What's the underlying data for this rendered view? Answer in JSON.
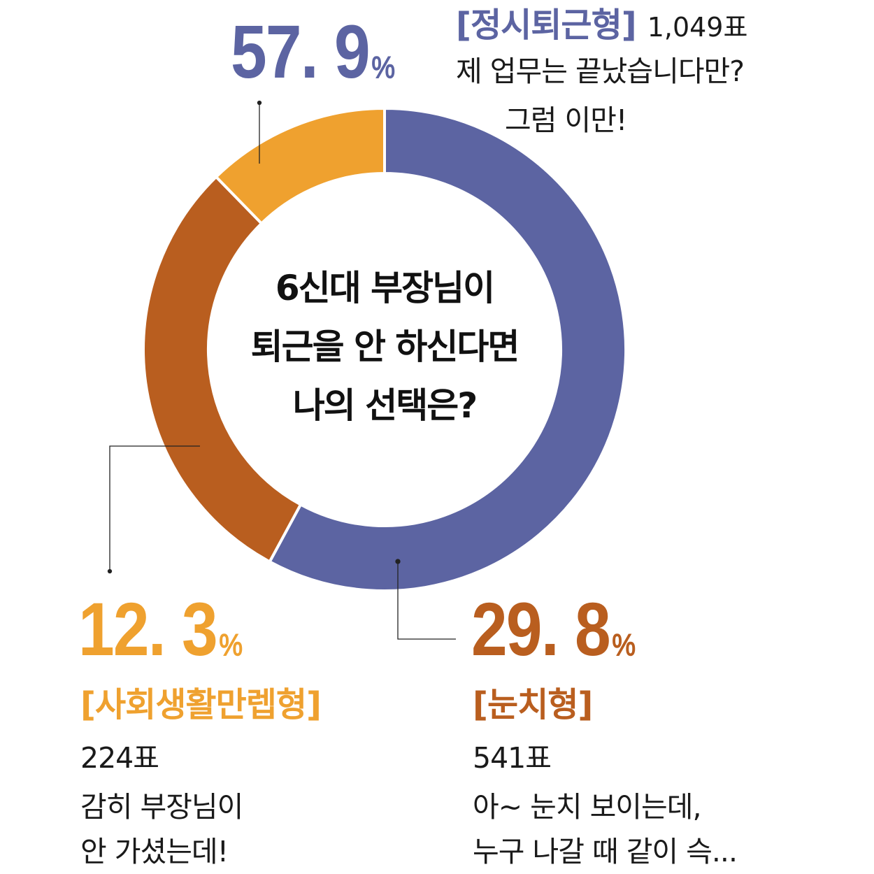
{
  "chart_data": {
    "type": "pie",
    "style": "donut",
    "title": "6신대 부장님이\n퇴근을 안 하신다면\n나의 선택은?",
    "title_lines": [
      "6신대 부장님이",
      "퇴근을 안 하신다면",
      "나의 선택은?"
    ],
    "series": [
      {
        "name": "[정시퇴근형]",
        "percent": 57.9,
        "percent_label": "57. 9",
        "votes_label": "1,049표",
        "comment": [
          "제 업무는 끝났습니다만?",
          "그럼 이만!"
        ],
        "color": "#5c64a2"
      },
      {
        "name": "[눈치형]",
        "percent": 29.8,
        "percent_label": "29. 8",
        "votes_label": "541표",
        "comment": [
          "아~ 눈치 보이는데,",
          "누구 나갈 때 같이 슥..."
        ],
        "color": "#b95e1f"
      },
      {
        "name": "[사회생활만렙형]",
        "percent": 12.3,
        "percent_label": "12. 3",
        "votes_label": "224표",
        "comment": [
          "감히 부장님이",
          "안 가셨는데!"
        ],
        "color": "#efa12f"
      }
    ],
    "unit": "%",
    "start_angle_deg": -90,
    "legend": "none"
  }
}
